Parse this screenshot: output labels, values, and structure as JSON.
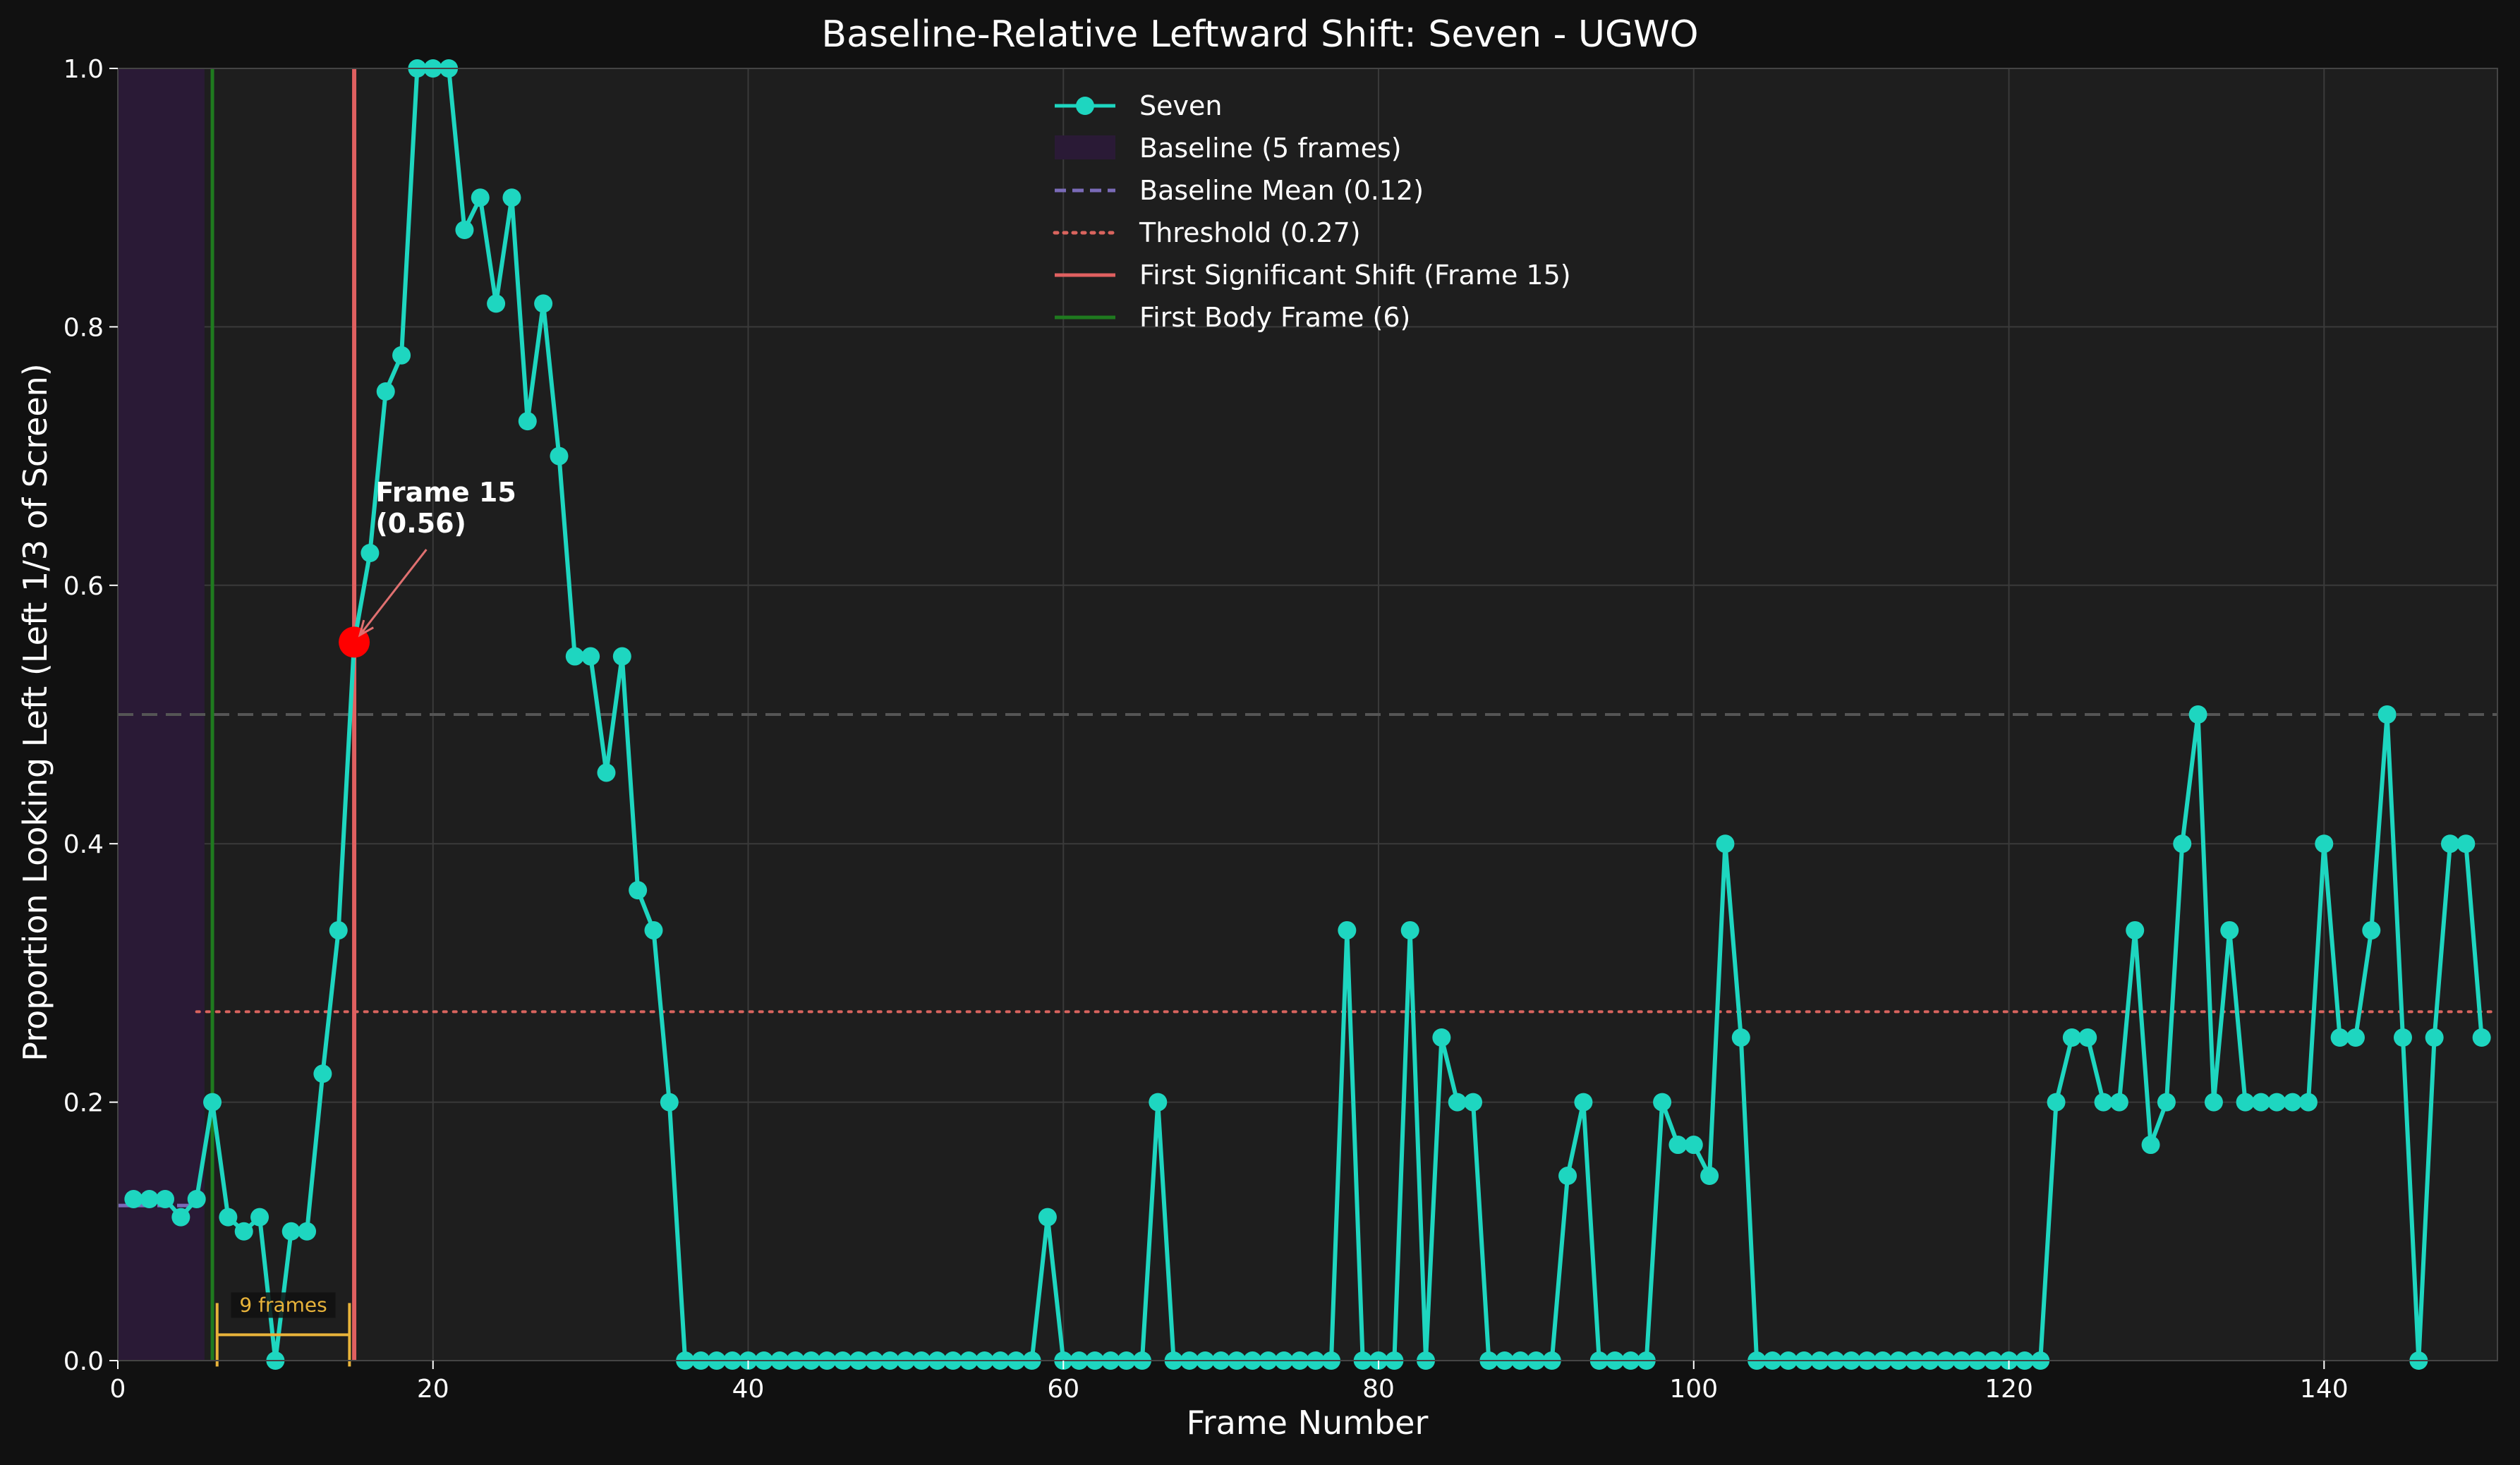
{
  "chart_data": {
    "type": "line",
    "title": "Baseline-Relative Leftward Shift: Seven - UGWO",
    "xlabel": "Frame Number",
    "ylabel": "Proportion Looking Left (Left 1/3 of Screen)",
    "xlim": [
      0,
      151
    ],
    "ylim": [
      0,
      1.0
    ],
    "xticks": [
      0,
      20,
      40,
      60,
      80,
      100,
      120,
      140
    ],
    "xtick_labels": [
      "0",
      "20",
      "40",
      "60",
      "80",
      "100",
      "120",
      "140"
    ],
    "yticks": [
      0.0,
      0.2,
      0.4,
      0.6,
      0.8,
      1.0
    ],
    "ytick_labels": [
      "0.0",
      "0.2",
      "0.4",
      "0.6",
      "0.8",
      "1.0"
    ],
    "grid": true,
    "legend_position": "top-center",
    "colors": {
      "series": "#1ed6c0",
      "baseline_span": "#2a1a36",
      "baseline_mean": "#7a6bb8",
      "threshold": "#d9645e",
      "first_shift": "#e06060",
      "first_body": "#1f7a1f",
      "marker": "#ff0000",
      "bracket": "#e8b33a",
      "reference": "#555555"
    },
    "series": [
      {
        "name": "Seven",
        "x": [
          1,
          2,
          3,
          4,
          5,
          6,
          7,
          8,
          9,
          10,
          11,
          12,
          13,
          14,
          15,
          16,
          17,
          18,
          19,
          20,
          21,
          22,
          23,
          24,
          25,
          26,
          27,
          28,
          29,
          30,
          31,
          32,
          33,
          34,
          35,
          36,
          37,
          38,
          39,
          40,
          41,
          42,
          43,
          44,
          45,
          46,
          47,
          48,
          49,
          50,
          51,
          52,
          53,
          54,
          55,
          56,
          57,
          58,
          59,
          60,
          61,
          62,
          63,
          64,
          65,
          66,
          67,
          68,
          69,
          70,
          71,
          72,
          73,
          74,
          75,
          76,
          77,
          78,
          79,
          80,
          81,
          82,
          83,
          84,
          85,
          86,
          87,
          88,
          89,
          90,
          91,
          92,
          93,
          94,
          95,
          96,
          97,
          98,
          99,
          100,
          101,
          102,
          103,
          104,
          105,
          106,
          107,
          108,
          109,
          110,
          111,
          112,
          113,
          114,
          115,
          116,
          117,
          118,
          119,
          120,
          121,
          122,
          123,
          124,
          125,
          126,
          127,
          128,
          129,
          130,
          131,
          132,
          133,
          134,
          135,
          136,
          137,
          138,
          139,
          140,
          141,
          142,
          143,
          144,
          145,
          146,
          147,
          148,
          149,
          150
        ],
        "y": [
          0.125,
          0.125,
          0.125,
          0.111,
          0.125,
          0.2,
          0.111,
          0.1,
          0.111,
          0.0,
          0.1,
          0.1,
          0.222,
          0.333,
          0.556,
          0.625,
          0.75,
          0.778,
          1.0,
          1.0,
          1.0,
          0.875,
          0.9,
          0.818,
          0.9,
          0.727,
          0.818,
          0.7,
          0.545,
          0.545,
          0.455,
          0.545,
          0.364,
          0.333,
          0.2,
          0.0,
          0.0,
          0.0,
          0.0,
          0.0,
          0.0,
          0.0,
          0.0,
          0.0,
          0.0,
          0.0,
          0.0,
          0.0,
          0.0,
          0.0,
          0.0,
          0.0,
          0.0,
          0.0,
          0.0,
          0.0,
          0.0,
          0.0,
          0.111,
          0.0,
          0.0,
          0.0,
          0.0,
          0.0,
          0.0,
          0.2,
          0.0,
          0.0,
          0.0,
          0.0,
          0.0,
          0.0,
          0.0,
          0.0,
          0.0,
          0.0,
          0.0,
          0.333,
          0.0,
          0.0,
          0.0,
          0.333,
          0.0,
          0.25,
          0.2,
          0.2,
          0.0,
          0.0,
          0.0,
          0.0,
          0.0,
          0.143,
          0.2,
          0.0,
          0.0,
          0.0,
          0.0,
          0.2,
          0.167,
          0.167,
          0.143,
          0.4,
          0.25,
          0.0,
          0.0,
          0.0,
          0.0,
          0.0,
          0.0,
          0.0,
          0.0,
          0.0,
          0.0,
          0.0,
          0.0,
          0.0,
          0.0,
          0.0,
          0.0,
          0.0,
          0.0,
          0.0,
          0.2,
          0.25,
          0.25,
          0.2,
          0.2,
          0.333,
          0.167,
          0.2,
          0.4,
          0.5,
          0.2,
          0.333,
          0.2,
          0.2,
          0.2,
          0.2,
          0.2,
          0.4,
          0.25,
          0.25,
          0.333,
          0.5,
          0.25,
          0.0,
          0.25,
          0.4,
          0.4,
          0.25
        ]
      }
    ],
    "baseline": {
      "x_start": 0,
      "x_end": 5.5,
      "mean": 0.12,
      "mean_x_start": 0,
      "mean_x_end": 5
    },
    "threshold": {
      "value": 0.27,
      "x_start": 5
    },
    "reference_line": {
      "value": 0.5
    },
    "first_shift": {
      "frame": 15,
      "value": 0.556
    },
    "first_body": {
      "frame": 6
    },
    "bracket": {
      "from": 6.3,
      "to": 14.7,
      "y": 0.02,
      "label": "9 frames"
    },
    "annotation": {
      "line1": "Frame 15",
      "line2": "(0.56)",
      "text_x": 16,
      "text_y": 0.655
    },
    "legend": [
      {
        "label": "Seven",
        "kind": "line-marker",
        "color": "#1ed6c0"
      },
      {
        "label": "Baseline (5 frames)",
        "kind": "patch",
        "color": "#2a1a36"
      },
      {
        "label": "Baseline Mean (0.12)",
        "kind": "dashed",
        "color": "#7a6bb8"
      },
      {
        "label": "Threshold (0.27)",
        "kind": "dotted",
        "color": "#d9645e"
      },
      {
        "label": "First Significant Shift (Frame 15)",
        "kind": "solid",
        "color": "#e06060"
      },
      {
        "label": "First Body Frame (6)",
        "kind": "solid",
        "color": "#1f7a1f"
      }
    ]
  }
}
